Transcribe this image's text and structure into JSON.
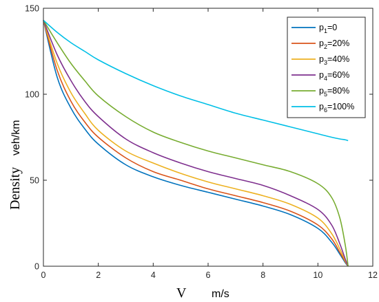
{
  "chart_data": {
    "type": "line",
    "title": "",
    "xlabel": {
      "symbol": "V",
      "unit": "m/s"
    },
    "ylabel": {
      "symbol": "Density",
      "unit": "veh/km"
    },
    "xlim": [
      0,
      12
    ],
    "ylim": [
      0,
      150
    ],
    "xticks": [
      "0",
      "2",
      "4",
      "6",
      "8",
      "10",
      "12"
    ],
    "yticks": [
      "0",
      "50",
      "100",
      "150"
    ],
    "grid": false,
    "legend_position": "top-right",
    "x": [
      0,
      0.5,
      1,
      1.5,
      2,
      3,
      4,
      5,
      6,
      7,
      8,
      9,
      10,
      10.5,
      10.8,
      11,
      11.1
    ],
    "series": [
      {
        "name": "p1=0",
        "label_main": "p",
        "label_sub": "1",
        "label_rest": "=0",
        "color": "#0072BD",
        "values": [
          143,
          110,
          92,
          80,
          71,
          59,
          52,
          47,
          43,
          39,
          35,
          30,
          22,
          14,
          7,
          2,
          0
        ]
      },
      {
        "name": "p2=20%",
        "label_main": "p",
        "label_sub": "2",
        "label_rest": "=20%",
        "color": "#D95319",
        "values": [
          143,
          114,
          96,
          84,
          75,
          63,
          55,
          50,
          45,
          41,
          37,
          32,
          24,
          16,
          8,
          2.5,
          0
        ]
      },
      {
        "name": "p3=40%",
        "label_main": "p",
        "label_sub": "3",
        "label_rest": "=40%",
        "color": "#EDB120",
        "values": [
          143,
          118,
          101,
          89,
          79,
          67,
          60,
          54,
          49,
          45,
          41,
          36,
          28,
          19,
          10,
          3,
          0
        ]
      },
      {
        "name": "p4=60%",
        "label_main": "p",
        "label_sub": "4",
        "label_rest": "=60%",
        "color": "#7E2F8E",
        "values": [
          143,
          123,
          108,
          96,
          87,
          74,
          66,
          60,
          55,
          51,
          47,
          41,
          33,
          24,
          13,
          4,
          0
        ]
      },
      {
        "name": "p5=80%",
        "label_main": "p",
        "label_sub": "5",
        "label_rest": "=80%",
        "color": "#77AC30",
        "values": [
          143,
          130,
          118,
          108,
          99,
          87,
          78,
          72,
          67,
          63,
          59,
          55,
          48,
          40,
          28,
          12,
          0
        ]
      },
      {
        "name": "p6=100%",
        "label_main": "p",
        "label_sub": "6",
        "label_rest": "=100%",
        "color": "#00BFE6",
        "values": [
          143,
          136,
          130,
          125,
          120,
          112,
          105,
          99,
          94,
          89,
          85,
          81,
          77,
          75,
          74,
          73.5,
          73
        ]
      }
    ]
  }
}
